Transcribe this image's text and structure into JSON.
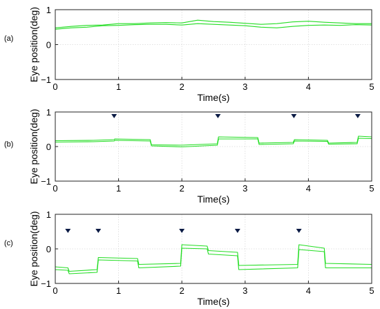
{
  "chart_data": [
    {
      "type": "line",
      "panel_label": "(a)",
      "xlabel": "Time(s)",
      "ylabel": "Eye position(deg)",
      "xlim": [
        0,
        5
      ],
      "ylim": [
        -1,
        1
      ],
      "xticks": [
        0,
        1,
        2,
        3,
        4,
        5
      ],
      "yticks": [
        -1,
        0,
        1
      ],
      "grid": true,
      "line_color": "#22dd22",
      "markers_x": [],
      "marker_y": 0.9,
      "series": [
        {
          "x": [
            0,
            0.25,
            0.5,
            0.75,
            1,
            1.25,
            1.5,
            1.75,
            2,
            2.25,
            2.5,
            2.75,
            3,
            3.25,
            3.5,
            3.75,
            4,
            4.25,
            4.5,
            4.75,
            5
          ],
          "values": [
            0.48,
            0.52,
            0.55,
            0.56,
            0.6,
            0.6,
            0.62,
            0.63,
            0.62,
            0.7,
            0.66,
            0.64,
            0.61,
            0.58,
            0.6,
            0.65,
            0.67,
            0.64,
            0.62,
            0.6,
            0.6
          ]
        },
        {
          "x": [
            0,
            0.25,
            0.5,
            0.75,
            1,
            1.25,
            1.5,
            1.75,
            2,
            2.25,
            2.5,
            2.75,
            3,
            3.25,
            3.5,
            3.75,
            4,
            4.25,
            4.5,
            4.75,
            5
          ],
          "values": [
            0.44,
            0.48,
            0.5,
            0.54,
            0.55,
            0.57,
            0.58,
            0.58,
            0.56,
            0.6,
            0.58,
            0.56,
            0.54,
            0.5,
            0.48,
            0.52,
            0.55,
            0.56,
            0.55,
            0.57,
            0.56
          ]
        }
      ]
    },
    {
      "type": "line",
      "panel_label": "(b)",
      "xlabel": "Time(s)",
      "ylabel": "Eye position(deg)",
      "xlim": [
        0,
        5
      ],
      "ylim": [
        -1,
        1
      ],
      "xticks": [
        0,
        1,
        2,
        3,
        4,
        5
      ],
      "yticks": [
        -1,
        0,
        1
      ],
      "grid": true,
      "line_color": "#22dd22",
      "markers_x": [
        0.93,
        2.57,
        3.77,
        4.78
      ],
      "marker_y": 0.88,
      "series": [
        {
          "x": [
            0,
            0.6,
            0.93,
            0.94,
            1.5,
            1.52,
            2.0,
            2.56,
            2.58,
            3.2,
            3.22,
            3.76,
            3.78,
            4.3,
            4.32,
            4.77,
            4.79,
            5
          ],
          "values": [
            0.17,
            0.18,
            0.2,
            0.22,
            0.2,
            0.05,
            0.04,
            0.08,
            0.28,
            0.26,
            0.1,
            0.12,
            0.2,
            0.18,
            0.1,
            0.12,
            0.3,
            0.28
          ]
        },
        {
          "x": [
            0,
            0.6,
            0.93,
            0.94,
            1.5,
            1.52,
            2.0,
            2.56,
            2.58,
            3.2,
            3.22,
            3.76,
            3.78,
            4.3,
            4.32,
            4.77,
            4.79,
            5
          ],
          "values": [
            0.13,
            0.14,
            0.16,
            0.18,
            0.16,
            0.02,
            -0.01,
            0.04,
            0.22,
            0.22,
            0.06,
            0.08,
            0.16,
            0.15,
            0.07,
            0.08,
            0.24,
            0.23
          ]
        }
      ]
    },
    {
      "type": "line",
      "panel_label": "(c)",
      "xlabel": "Time(s)",
      "ylabel": "Eye position(deg)",
      "xlim": [
        0,
        5
      ],
      "ylim": [
        -1,
        1
      ],
      "xticks": [
        0,
        1,
        2,
        3,
        4,
        5
      ],
      "yticks": [
        -1,
        0,
        1
      ],
      "grid": true,
      "line_color": "#22dd22",
      "markers_x": [
        0.2,
        0.68,
        2.0,
        2.88,
        3.85
      ],
      "marker_y": 0.52,
      "series": [
        {
          "x": [
            0,
            0.2,
            0.22,
            0.66,
            0.68,
            1.3,
            1.32,
            1.98,
            2.0,
            2.4,
            2.42,
            2.88,
            2.9,
            3.83,
            3.85,
            4.25,
            4.27,
            5
          ],
          "values": [
            -0.52,
            -0.55,
            -0.65,
            -0.6,
            -0.25,
            -0.28,
            -0.45,
            -0.42,
            0.12,
            0.08,
            -0.05,
            -0.1,
            -0.48,
            -0.45,
            0.12,
            0.02,
            -0.42,
            -0.45
          ]
        },
        {
          "x": [
            0,
            0.2,
            0.22,
            0.66,
            0.68,
            1.3,
            1.32,
            1.98,
            2.0,
            2.4,
            2.42,
            2.88,
            2.9,
            3.83,
            3.85,
            4.25,
            4.27,
            5
          ],
          "values": [
            -0.6,
            -0.62,
            -0.72,
            -0.68,
            -0.32,
            -0.35,
            -0.55,
            -0.5,
            0.02,
            0.0,
            -0.15,
            -0.2,
            -0.6,
            -0.55,
            -0.02,
            -0.08,
            -0.55,
            -0.55
          ]
        }
      ]
    }
  ]
}
